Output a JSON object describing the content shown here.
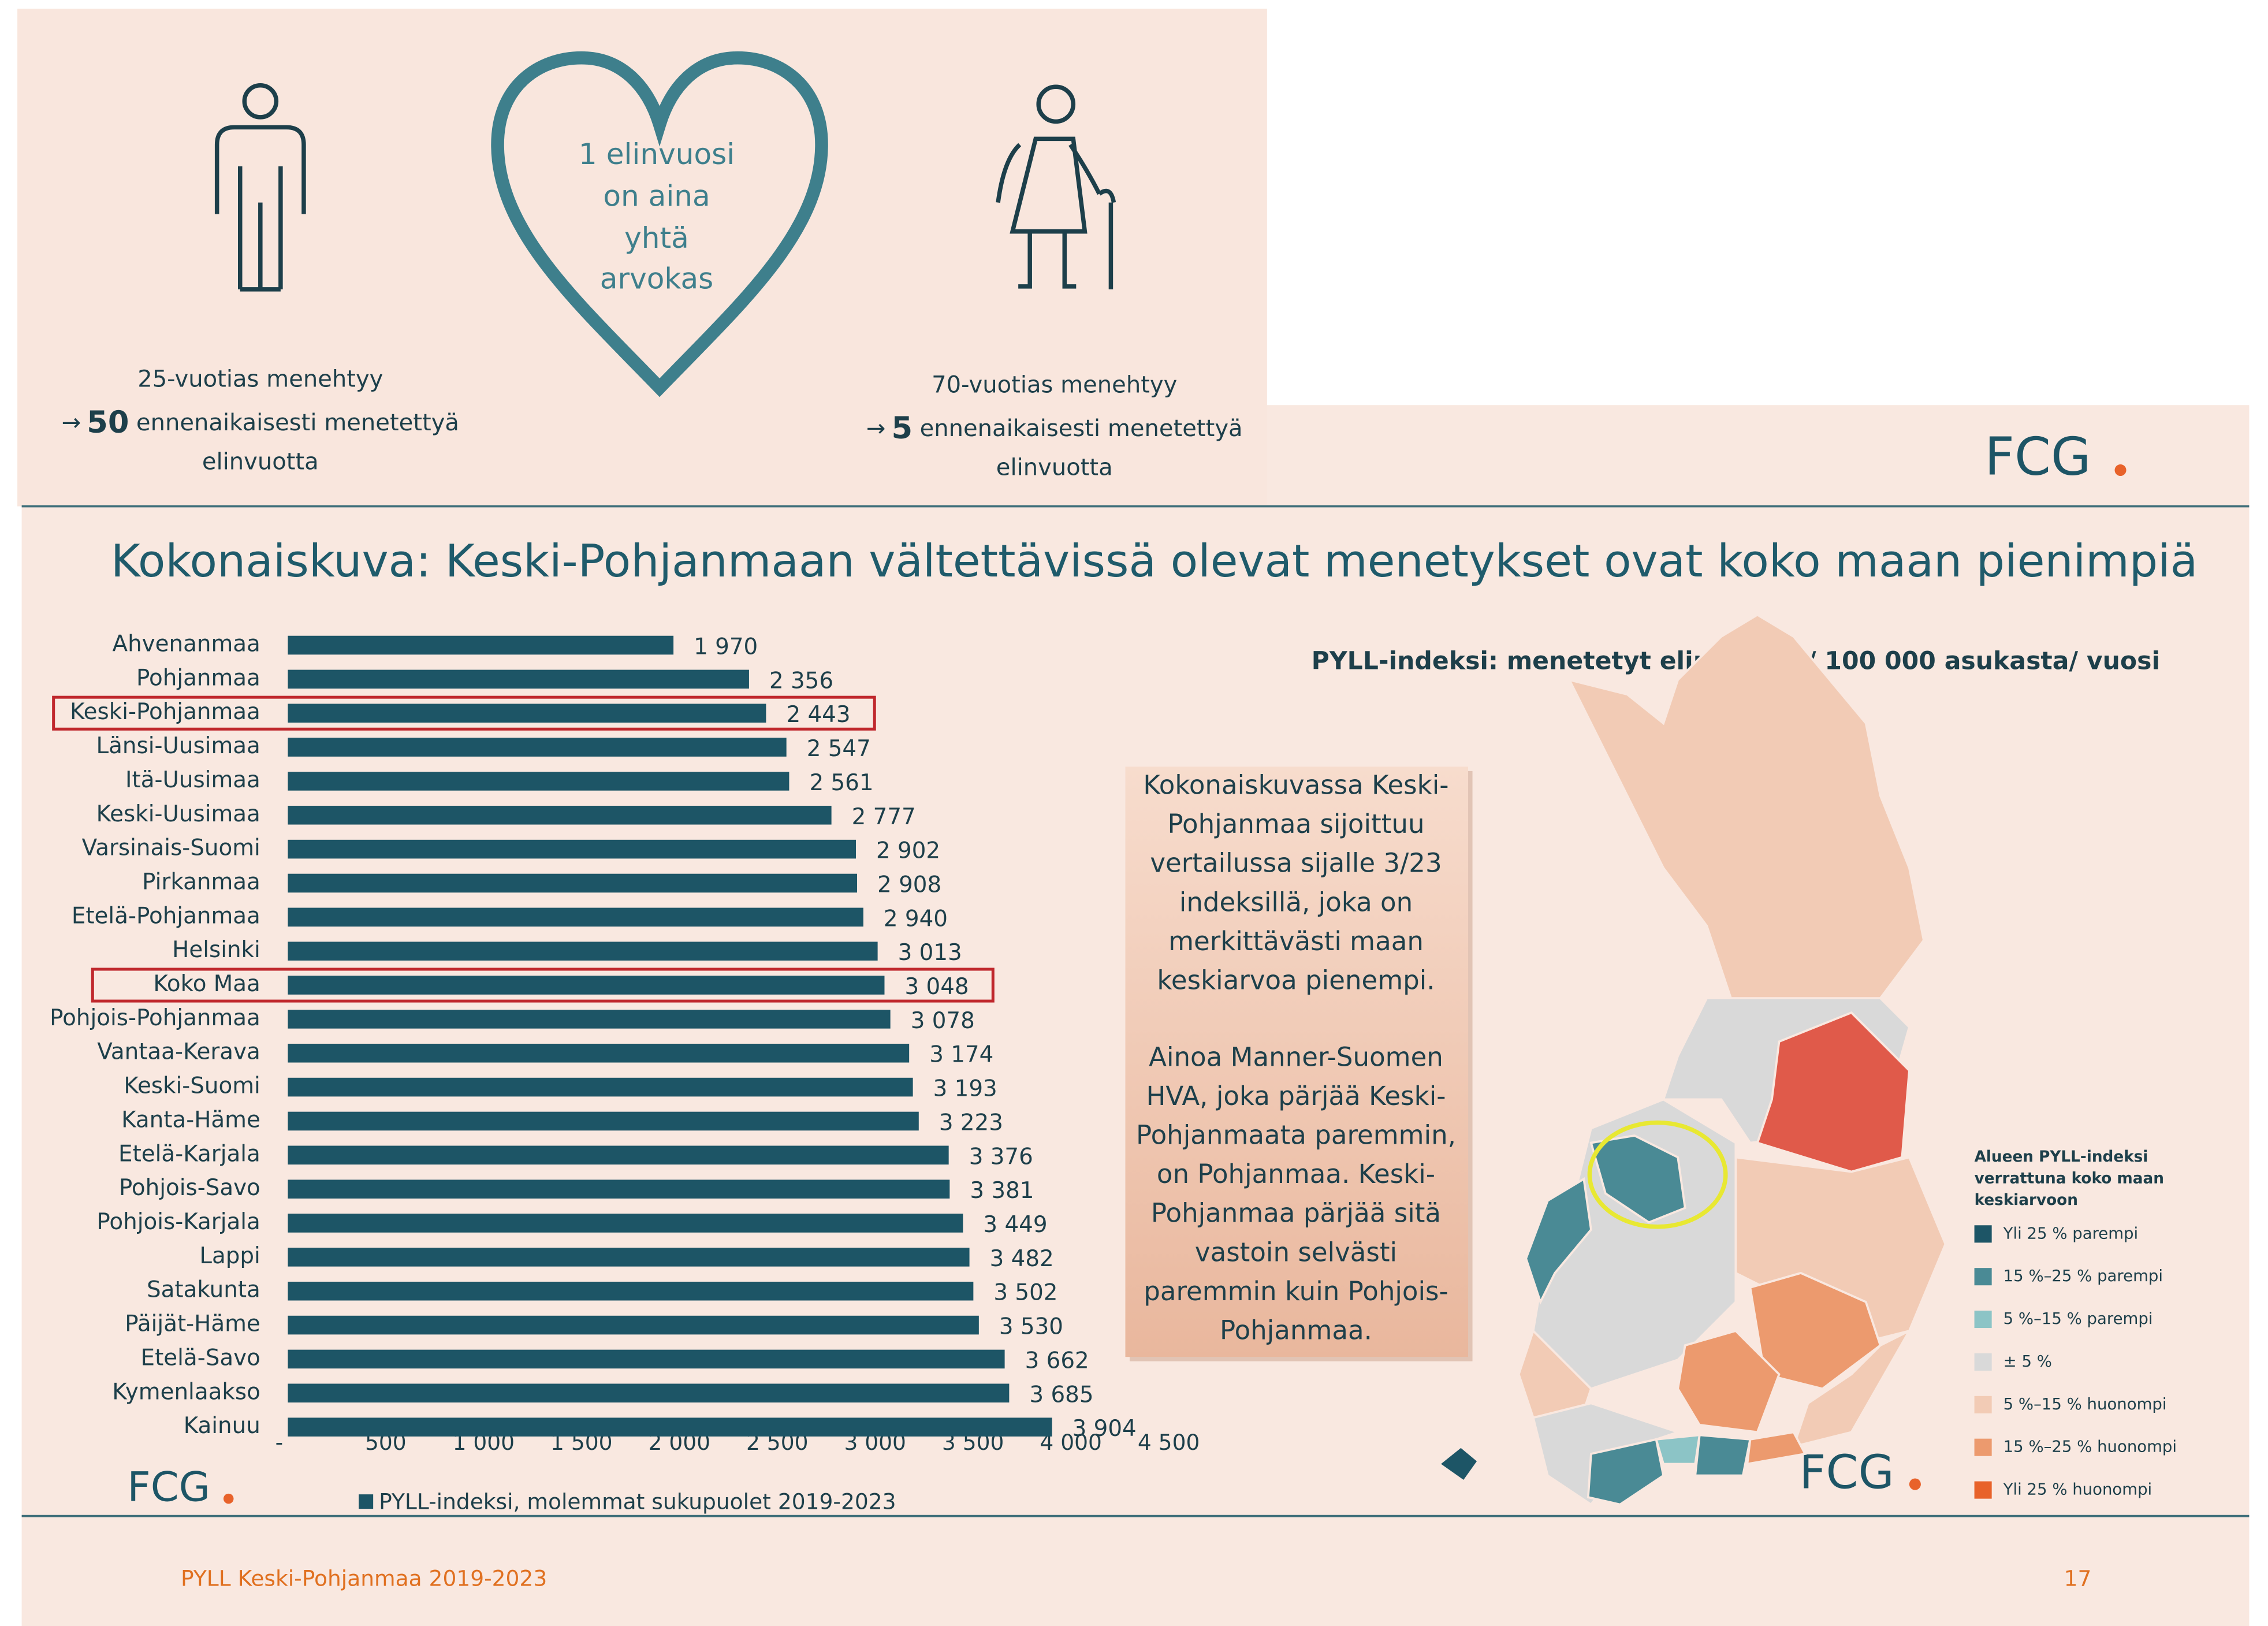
{
  "infographic": {
    "heart_lines": [
      "1 elinvuosi",
      "on aina",
      "yhtä",
      "arvokas"
    ],
    "left": {
      "line1": "25-vuotias menehtyy",
      "arrow": "→",
      "number": "50",
      "line2": "ennenaikaisesti menetettyä",
      "line3": "elinvuotta"
    },
    "right": {
      "line1": "70-vuotias menehtyy",
      "arrow": "→",
      "number": "5",
      "line2": "ennenaikaisesti menetettyä",
      "line3": "elinvuotta"
    }
  },
  "logo": "FCG",
  "chart_data": {
    "type": "hbar",
    "title": "Kokonaiskuva: Keski-Pohjanmaan vältettävissä olevat menetykset ovat koko maan pienimpiä",
    "categories": [
      "Ahvenanmaa",
      "Pohjanmaa",
      "Keski-Pohjanmaa",
      "Länsi-Uusimaa",
      "Itä-Uusimaa",
      "Keski-Uusimaa",
      "Varsinais-Suomi",
      "Pirkanmaa",
      "Etelä-Pohjanmaa",
      "Helsinki",
      "Koko Maa",
      "Pohjois-Pohjanmaa",
      "Vantaa-Kerava",
      "Keski-Suomi",
      "Kanta-Häme",
      "Etelä-Karjala",
      "Pohjois-Savo",
      "Pohjois-Karjala",
      "Lappi",
      "Satakunta",
      "Päijät-Häme",
      "Etelä-Savo",
      "Kymenlaakso",
      "Kainuu"
    ],
    "series": [
      {
        "name": "PYLL-indeksi, molemmat sukupuolet 2019-2023",
        "color": "#1d5566",
        "values": [
          1970,
          2356,
          2443,
          2547,
          2561,
          2777,
          2902,
          2908,
          2940,
          3013,
          3048,
          3078,
          3174,
          3193,
          3223,
          3376,
          3381,
          3449,
          3482,
          3502,
          3530,
          3662,
          3685,
          3904
        ],
        "value_labels": [
          "1 970",
          "2 356",
          "2 443",
          "2 547",
          "2 561",
          "2 777",
          "2 902",
          "2 908",
          "2 940",
          "3 013",
          "3 048",
          "3 078",
          "3 174",
          "3 193",
          "3 223",
          "3 376",
          "3 381",
          "3 449",
          "3 482",
          "3 502",
          "3 530",
          "3 662",
          "3 685",
          "3 904"
        ]
      }
    ],
    "xlim": [
      0,
      4500
    ],
    "xticks": [
      {
        "value": 0,
        "label": "-"
      },
      500,
      {
        "value": 1000,
        "label": "1 000"
      },
      {
        "value": 1500,
        "label": "1 500"
      },
      {
        "value": 2000,
        "label": "2 000"
      },
      {
        "value": 2500,
        "label": "2 500"
      },
      {
        "value": 3000,
        "label": "3 000"
      },
      {
        "value": 3500,
        "label": "3 500"
      },
      {
        "value": 4000,
        "label": "4 000"
      },
      {
        "value": 4500,
        "label": "4 500"
      }
    ],
    "highlighted_categories": [
      2,
      10
    ],
    "highlight_color": "#c0282d",
    "legend": "bottom"
  },
  "map": {
    "subtitle": "PYLL-indeksi:  menetetyt elinvuodet/ 100 000 asukasta/ vuosi",
    "legend_title": [
      "Alueen PYLL-indeksi",
      "verrattuna koko maan",
      "keskiarvoon"
    ],
    "legend": [
      {
        "label": "Yli 25 % parempi",
        "color": "#1d5566"
      },
      {
        "label": "15 %–25 % parempi",
        "color": "#4a8a95"
      },
      {
        "label": "5 %–15 % parempi",
        "color": "#8cc4c6"
      },
      {
        "label": "± 5 %",
        "color": "#d9d9d9"
      },
      {
        "label": "5 %–15 % huonompi",
        "color": "#f2cbb5"
      },
      {
        "label": "15 %–25 % huonompi",
        "color": "#ec9a6e"
      },
      {
        "label": "Yli 25 % huonompi",
        "color": "#e8622a"
      }
    ]
  },
  "callout": {
    "paragraph1": [
      "Kokonaiskuvassa Keski-",
      "Pohjanmaa sijoittuu",
      "vertailussa sijalle 3/23",
      "indeksillä, joka on",
      "merkittävästi maan",
      "keskiarvoa pienempi."
    ],
    "paragraph2": [
      "Ainoa Manner-Suomen",
      "HVA, joka pärjää Keski-",
      "Pohjanmaata paremmin,",
      "on Pohjanmaa. Keski-",
      "Pohjanmaa pärjää sitä",
      "vastoin selvästi",
      "paremmin kuin Pohjois-",
      "Pohjanmaa."
    ]
  },
  "footer": {
    "title": "PYLL Keski-Pohjanmaa 2019-2023",
    "page": "17"
  }
}
